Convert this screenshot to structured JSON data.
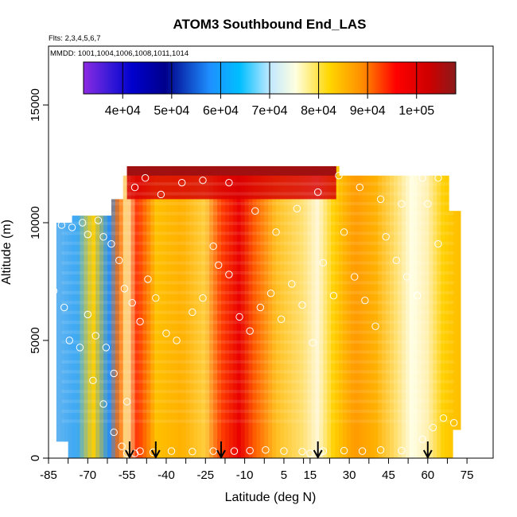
{
  "chart_data": {
    "type": "heatmap",
    "title": "ATOM3 Southbound End_LAS",
    "subtitle_flights": "Flts: 2,3,4,5,6,7",
    "subtitle_dates": "MMDD: 1001,1004,1006,1008,1011,1014",
    "xlabel": "Latitude (deg N)",
    "ylabel": "Altitude (m)",
    "xlim": [
      -85,
      85
    ],
    "ylim": [
      0,
      17500
    ],
    "x_ticks": [
      "-85",
      "-70",
      "-55",
      "-40",
      "-25",
      "-10",
      "5",
      "15",
      "30",
      "45",
      "60",
      "75"
    ],
    "y_ticks": [
      "0",
      "5000",
      "10000",
      "15000"
    ],
    "colorbar": {
      "ticks": [
        "4e+04",
        "5e+04",
        "6e+04",
        "7e+04",
        "8e+04",
        "9e+04",
        "1e+05"
      ],
      "range": [
        32000,
        108000
      ],
      "colors": [
        "#8b2be2",
        "#0000cd",
        "#00008b",
        "#1e90ff",
        "#00bfff",
        "#e0f4ff",
        "#ffffe0",
        "#ffd700",
        "#ff8c00",
        "#ff0000",
        "#cd0000",
        "#8b1a1a"
      ]
    },
    "arrow_latitudes": [
      -54,
      -44,
      -19,
      18,
      60
    ],
    "grid": false,
    "colorbar_placement": "top"
  }
}
